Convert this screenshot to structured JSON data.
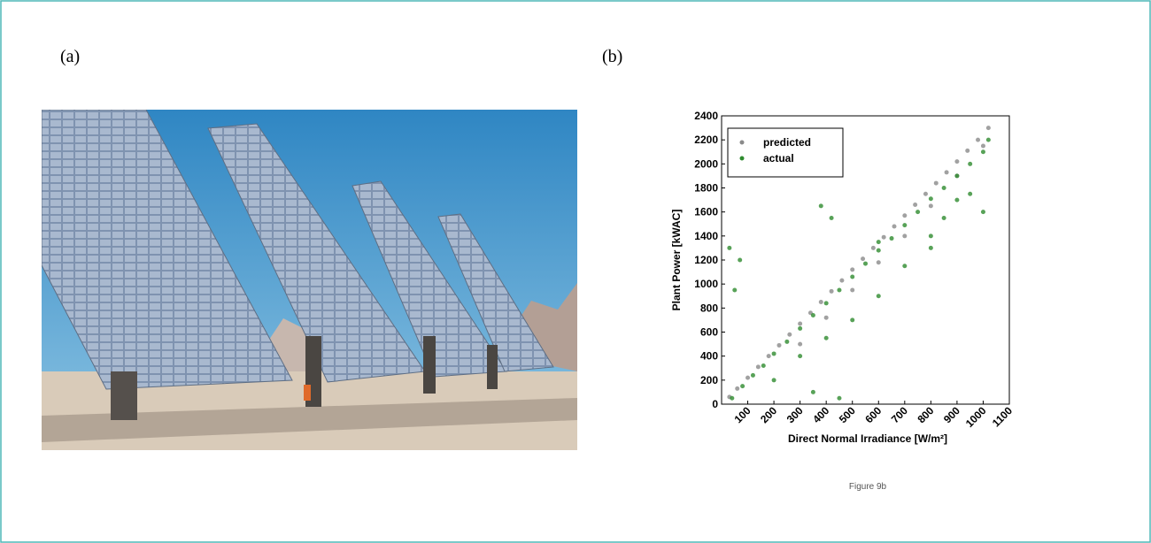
{
  "labels": {
    "a": "(a)",
    "b": "(b)"
  },
  "caption": "Figure 9b",
  "chart_data": {
    "type": "scatter",
    "x_label": "Direct Normal Irradiance [W/m²]",
    "y_label": "Plant Power [kWAC]",
    "xlim": [
      0,
      1100
    ],
    "ylim": [
      0,
      2400
    ],
    "xticks": [
      100,
      200,
      300,
      400,
      500,
      600,
      700,
      800,
      900,
      1000,
      1100
    ],
    "yticks": [
      0,
      200,
      400,
      600,
      800,
      1000,
      1200,
      1400,
      1600,
      1800,
      2000,
      2200,
      2400
    ],
    "legend": "upper left",
    "series": [
      {
        "name": "predicted",
        "color": "#8a8a8a",
        "x": [
          30,
          60,
          100,
          140,
          180,
          220,
          260,
          300,
          340,
          380,
          420,
          460,
          500,
          540,
          580,
          620,
          660,
          700,
          740,
          780,
          820,
          860,
          900,
          940,
          980,
          1020,
          300,
          400,
          500,
          600,
          700,
          800,
          900,
          1000
        ],
        "values": [
          60,
          130,
          220,
          310,
          400,
          490,
          580,
          670,
          760,
          850,
          940,
          1030,
          1120,
          1210,
          1300,
          1390,
          1480,
          1570,
          1660,
          1750,
          1840,
          1930,
          2020,
          2110,
          2200,
          2300,
          500,
          720,
          950,
          1180,
          1400,
          1650,
          1900,
          2150
        ]
      },
      {
        "name": "actual",
        "color": "#2e8b2e",
        "x": [
          40,
          80,
          120,
          160,
          200,
          250,
          300,
          350,
          400,
          450,
          500,
          550,
          600,
          650,
          700,
          750,
          800,
          850,
          900,
          950,
          1000,
          1020,
          200,
          300,
          400,
          500,
          600,
          700,
          800,
          900,
          1000,
          30,
          50,
          70,
          380,
          420,
          350,
          450,
          600,
          800,
          850,
          950
        ],
        "values": [
          50,
          150,
          240,
          320,
          420,
          520,
          630,
          740,
          840,
          950,
          1060,
          1170,
          1280,
          1380,
          1490,
          1600,
          1710,
          1800,
          1900,
          2000,
          2100,
          2200,
          200,
          400,
          550,
          700,
          900,
          1150,
          1400,
          1700,
          1600,
          1300,
          950,
          1200,
          1650,
          1550,
          100,
          50,
          1350,
          1300,
          1550,
          1750
        ]
      }
    ]
  }
}
